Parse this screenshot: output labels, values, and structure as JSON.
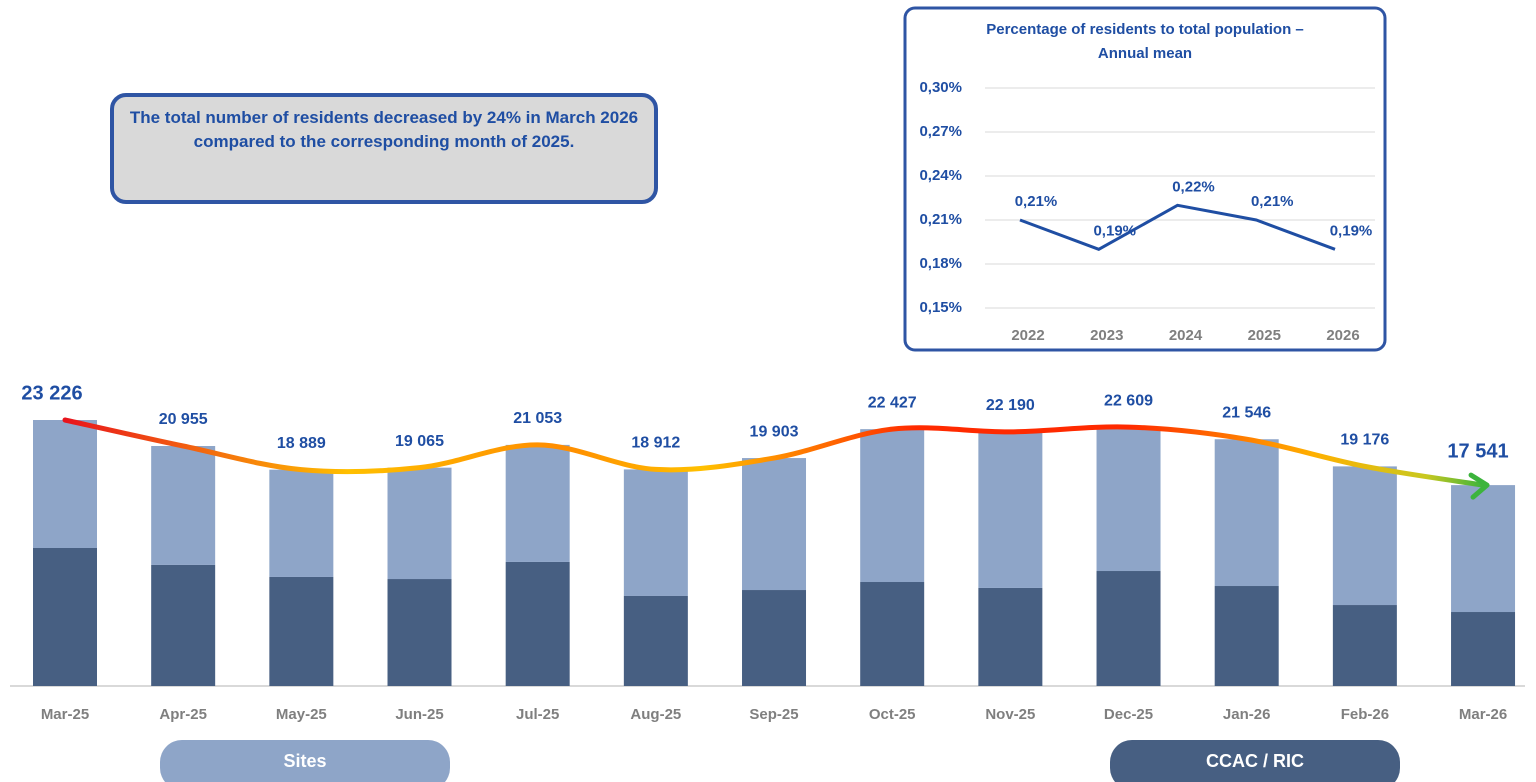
{
  "chart_data": [
    {
      "type": "stacked_bar",
      "annotation": "The total number of residents decreased by 24% in March 2026 compared to the corresponding month of 2025.",
      "categories": [
        "Mar-25",
        "Apr-25",
        "May-25",
        "Jun-25",
        "Jul-25",
        "Aug-25",
        "Sep-25",
        "Oct-25",
        "Nov-25",
        "Dec-25",
        "Jan-26",
        "Feb-26",
        "Mar-26"
      ],
      "series": [
        {
          "name": "CCAC / RIC",
          "color": "#475f82",
          "values": [
            12050,
            10570,
            9520,
            9340,
            10830,
            7860,
            8380,
            9080,
            8560,
            10040,
            8730,
            7070,
            6460
          ]
        },
        {
          "name": "Sites",
          "color": "#8ea5c8",
          "values": [
            11176,
            10385,
            9369,
            9725,
            10223,
            11052,
            11523,
            13347,
            13630,
            12569,
            12816,
            12106,
            11081
          ]
        }
      ],
      "totals": {
        "values": [
          23226,
          20955,
          18889,
          19065,
          21053,
          18912,
          19903,
          22427,
          22190,
          22609,
          21546,
          19176,
          17541
        ],
        "value_labels": [
          "23 226",
          "20 955",
          "18 889",
          "19 065",
          "21 053",
          "18 912",
          "19 903",
          "22 427",
          "22 190",
          "22 609",
          "21 546",
          "19 176",
          "17 541"
        ]
      }
    },
    {
      "type": "line",
      "title": "Percentage of residents to total population – Annual mean",
      "categories": [
        "2022",
        "2023",
        "2024",
        "2025",
        "2026"
      ],
      "values": [
        0.21,
        0.19,
        0.22,
        0.21,
        0.19
      ],
      "value_labels": [
        "0,21%",
        "0,19%",
        "0,22%",
        "0,21%",
        "0,19%"
      ],
      "color": "#1f4ea3",
      "ylim": [
        0.15,
        0.3
      ],
      "yticks": [
        {
          "value": 0.15,
          "label": "0,15%"
        },
        {
          "value": 0.18,
          "label": "0,18%"
        },
        {
          "value": 0.21,
          "label": "0,21%"
        },
        {
          "value": 0.24,
          "label": "0,24%"
        },
        {
          "value": 0.27,
          "label": "0,27%"
        },
        {
          "value": 0.3,
          "label": "0,30%"
        }
      ],
      "grid": true
    }
  ]
}
